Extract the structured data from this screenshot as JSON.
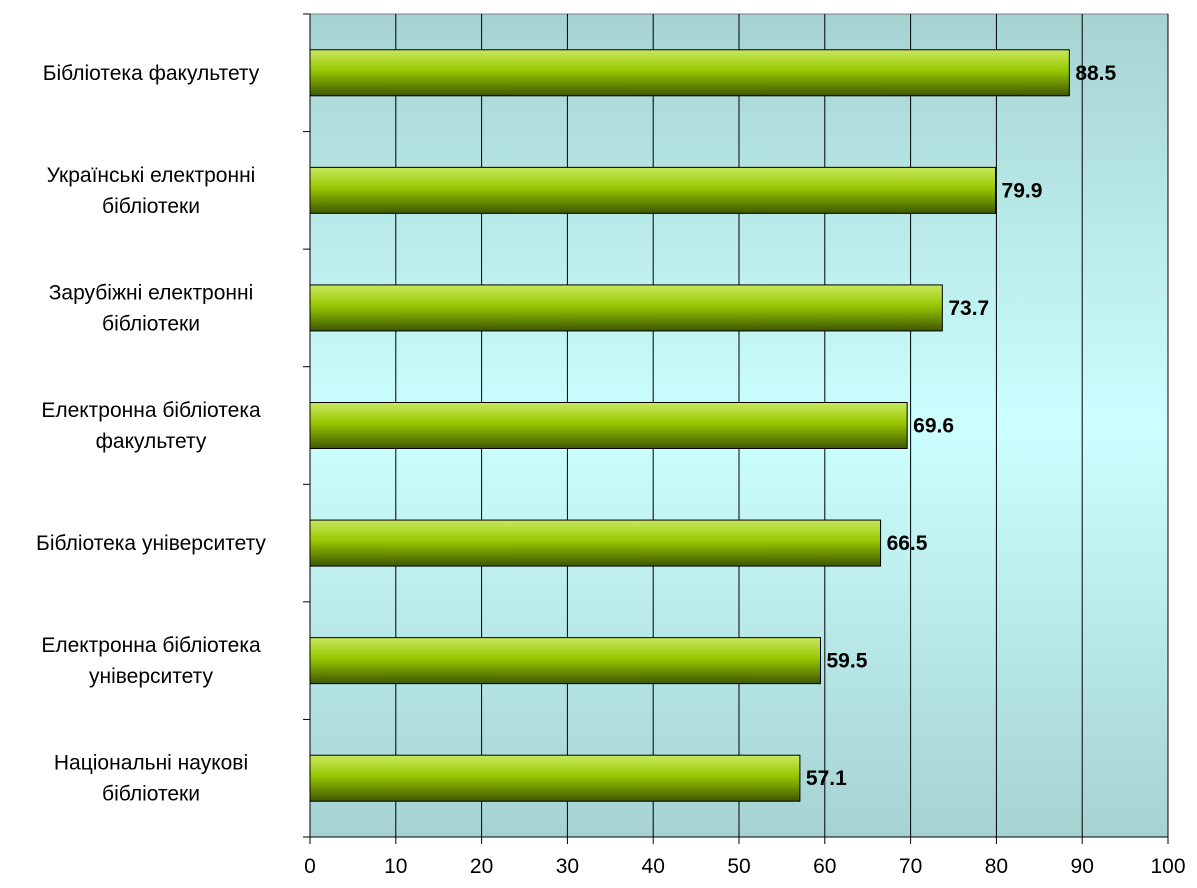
{
  "chart_data": {
    "type": "bar",
    "orientation": "horizontal",
    "categories": [
      [
        "Бібліотека факультету"
      ],
      [
        "Українські електронні",
        "бібліотеки"
      ],
      [
        "Зарубіжні електронні",
        "бібліотеки"
      ],
      [
        "Електронна бібліотека",
        "факультету"
      ],
      [
        "Бібліотека університету"
      ],
      [
        "Електронна бібліотека",
        "університету"
      ],
      [
        "Національні наукові",
        "бібліотеки"
      ]
    ],
    "values": [
      88.5,
      79.9,
      73.7,
      69.6,
      66.5,
      59.5,
      57.1
    ],
    "data_labels": [
      "88.5",
      "79.9",
      "73.7",
      "69.6",
      "66.5",
      "59.5",
      "57.1"
    ],
    "xlim": [
      0,
      100
    ],
    "x_ticks": [
      0,
      10,
      20,
      30,
      40,
      50,
      60,
      70,
      80,
      90,
      100
    ],
    "grid": true,
    "legend": "none",
    "colors": {
      "bar_top": "#c8e860",
      "bar_mid": "#98c800",
      "bar_bottom": "#3e5800",
      "bar_edge": "#000000",
      "plot_edge": "#a6d2d2",
      "plot_center": "#ccffff",
      "grid": "#000000"
    }
  }
}
